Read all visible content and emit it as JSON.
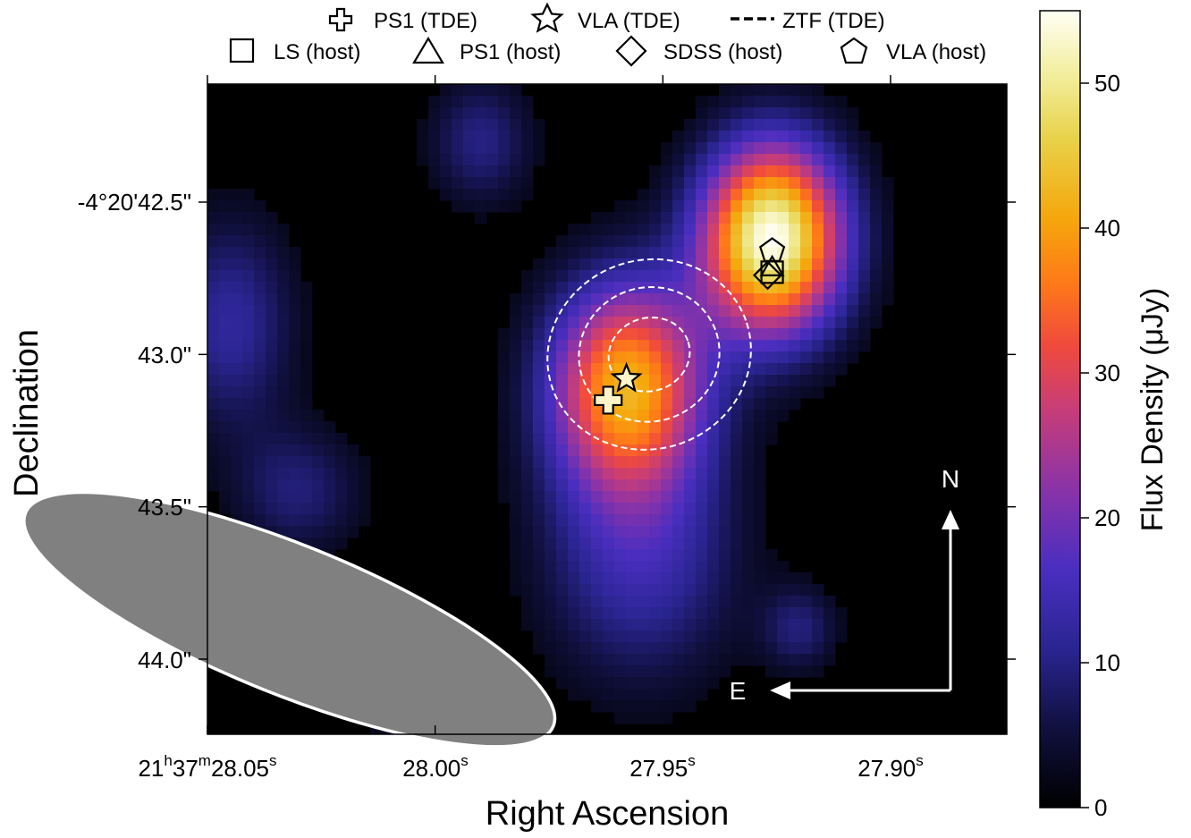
{
  "chart_data": {
    "type": "heatmap",
    "xlabel": "Right Ascension",
    "ylabel": "Declination",
    "colorbar": {
      "label": "Flux Density (μJy)",
      "range": [
        0,
        55
      ],
      "ticks": [
        0,
        10,
        20,
        30,
        40,
        50
      ],
      "colormap": "CMRmap-like (black → blue/purple → red → orange → yellow → white)"
    },
    "x_axis": {
      "range_seconds": [
        28.05,
        27.874
      ],
      "direction": "RA decreasing to the right",
      "ticks": [
        {
          "value": 28.05,
          "label": "21h37m28.05s",
          "parts": {
            "h": "21",
            "hs": "h",
            "m": "37",
            "ms": "m",
            "s": "28.05",
            "ss": "s"
          }
        },
        {
          "value": 28.0,
          "label": "28.00s",
          "parts": {
            "s": "28.00",
            "ss": "s"
          }
        },
        {
          "value": 27.95,
          "label": "27.95s",
          "parts": {
            "s": "27.95",
            "ss": "s"
          }
        },
        {
          "value": 27.9,
          "label": "27.90s",
          "parts": {
            "s": "27.90",
            "ss": "s"
          }
        }
      ]
    },
    "y_axis": {
      "range_arcsec_offset": [
        42.1,
        44.25
      ],
      "direction": "declination offset increasing downward",
      "ticks": [
        {
          "value": 42.5,
          "label": "-4°20'42.5\""
        },
        {
          "value": 43.0,
          "label": "43.0\""
        },
        {
          "value": 43.5,
          "label": "43.5\""
        },
        {
          "value": 44.0,
          "label": "44.0\""
        }
      ]
    },
    "emission_sources": [
      {
        "name": "northwest peak",
        "ra_s": 27.926,
        "dec_off": 42.62,
        "peak_flux": 55,
        "sigma_ra": 0.011,
        "sigma_dec": 0.22
      },
      {
        "name": "central peak",
        "ra_s": 27.958,
        "dec_off": 43.1,
        "peak_flux": 40,
        "sigma_ra": 0.012,
        "sigma_dec": 0.24
      },
      {
        "name": "southern tail",
        "ra_s": 27.955,
        "dec_off": 43.65,
        "peak_flux": 14,
        "sigma_ra": 0.015,
        "sigma_dec": 0.3
      },
      {
        "name": "western extension",
        "ra_s": 28.045,
        "dec_off": 42.9,
        "peak_flux": 12,
        "sigma_ra": 0.01,
        "sigma_dec": 0.25
      },
      {
        "name": "northern blob",
        "ra_s": 27.99,
        "dec_off": 42.3,
        "peak_flux": 10,
        "sigma_ra": 0.008,
        "sigma_dec": 0.15
      },
      {
        "name": "southwest blob",
        "ra_s": 28.03,
        "dec_off": 43.45,
        "peak_flux": 9,
        "sigma_ra": 0.01,
        "sigma_dec": 0.15
      },
      {
        "name": "southwest bottom blob",
        "ra_s": 28.0,
        "dec_off": 44.2,
        "peak_flux": 10,
        "sigma_ra": 0.008,
        "sigma_dec": 0.1
      },
      {
        "name": "southeast blob",
        "ra_s": 27.92,
        "dec_off": 43.9,
        "peak_flux": 9,
        "sigma_ra": 0.006,
        "sigma_dec": 0.1
      }
    ],
    "markers": [
      {
        "name": "PS1 (TDE)",
        "shape": "plus",
        "ra_s": 27.962,
        "dec_off": 43.15,
        "fill": "#fff5c8"
      },
      {
        "name": "VLA (TDE)",
        "shape": "star",
        "ra_s": 27.958,
        "dec_off": 43.08,
        "fill": "#fff5c8"
      },
      {
        "name": "LS (host)",
        "shape": "square",
        "ra_s": 27.926,
        "dec_off": 42.73,
        "fill": "none"
      },
      {
        "name": "PS1 (host)",
        "shape": "triangle",
        "ra_s": 27.926,
        "dec_off": 42.72,
        "fill": "none"
      },
      {
        "name": "SDSS (host)",
        "shape": "diamond",
        "ra_s": 27.927,
        "dec_off": 42.74,
        "fill": "none"
      },
      {
        "name": "VLA (host)",
        "shape": "pentagon",
        "ra_s": 27.926,
        "dec_off": 42.66,
        "fill": "none"
      }
    ],
    "ztf_contours": {
      "name": "ZTF (TDE)",
      "center_ra_s": 27.953,
      "center_dec_off": 43.0,
      "rotation_deg": -18,
      "ellipses": [
        {
          "a_seconds": 0.009,
          "b_arcsec": 0.12
        },
        {
          "a_seconds": 0.0155,
          "b_arcsec": 0.22
        },
        {
          "a_seconds": 0.0225,
          "b_arcsec": 0.31
        }
      ]
    },
    "beam": {
      "center_ra_s": 28.032,
      "center_dec_off": 43.87,
      "major_arcsec": 0.49,
      "minor_seconds": 0.0125,
      "rotation_deg": 22,
      "fill": "#808080"
    },
    "compass": {
      "north_label": "N",
      "east_label": "E"
    },
    "legend": {
      "row1": [
        {
          "label": "PS1 (TDE)",
          "shape": "plus"
        },
        {
          "label": "VLA (TDE)",
          "shape": "star"
        },
        {
          "label": "ZTF (TDE)",
          "shape": "dashed-line"
        }
      ],
      "row2": [
        {
          "label": "LS (host)",
          "shape": "square"
        },
        {
          "label": "PS1 (host)",
          "shape": "triangle"
        },
        {
          "label": "SDSS (host)",
          "shape": "diamond"
        },
        {
          "label": "VLA (host)",
          "shape": "pentagon"
        }
      ],
      "placement": "above plot"
    }
  }
}
